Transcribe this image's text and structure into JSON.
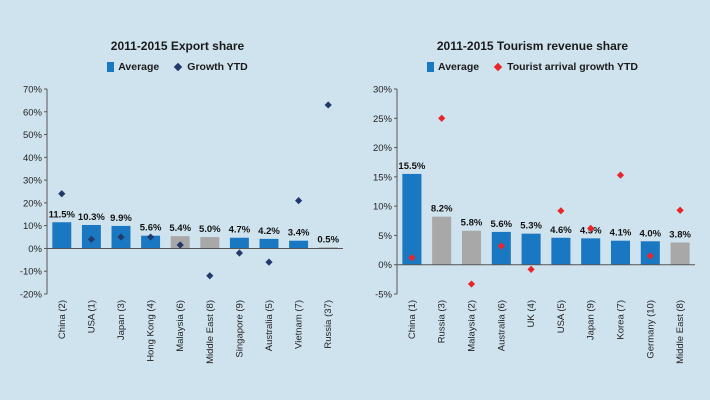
{
  "chart_data": [
    {
      "type": "bar",
      "title": "2011-2015 Export share",
      "legend": {
        "bar_label": "Average",
        "marker_label": "Growth YTD"
      },
      "categories": [
        "China (2)",
        "USA (1)",
        "Japan (3)",
        "Hong Kong (4)",
        "Malaysia (6)",
        "Middle East (8)",
        "Singapore (9)",
        "Australia (5)",
        "Vietnam (7)",
        "Russia (37)"
      ],
      "series": [
        {
          "name": "Average",
          "kind": "bar",
          "values": [
            11.5,
            10.3,
            9.9,
            5.6,
            5.4,
            5.0,
            4.7,
            4.2,
            3.4,
            0.5
          ],
          "labels": [
            "11.5%",
            "10.3%",
            "9.9%",
            "5.6%",
            "5.4%",
            "5.0%",
            "4.7%",
            "4.2%",
            "3.4%",
            "0.5%"
          ],
          "colors": [
            "#1a78c2",
            "#1a78c2",
            "#1a78c2",
            "#1a78c2",
            "#a8a8a8",
            "#a8a8a8",
            "#1a78c2",
            "#1a78c2",
            "#1a78c2",
            "#a8a8a8"
          ]
        },
        {
          "name": "Growth YTD",
          "kind": "marker",
          "marker": "diamond",
          "color": "#23396b",
          "values": [
            24,
            4,
            5,
            5,
            1.5,
            -12,
            -2,
            -6,
            21,
            63
          ]
        }
      ],
      "ylim": [
        -20,
        70
      ],
      "yticks": [
        -20,
        -10,
        0,
        10,
        20,
        30,
        40,
        50,
        60,
        70
      ],
      "ytick_labels": [
        "-20%",
        "-10%",
        "0%",
        "10%",
        "20%",
        "30%",
        "40%",
        "50%",
        "60%",
        "70%"
      ],
      "grid": false
    },
    {
      "type": "bar",
      "title": "2011-2015 Tourism revenue share",
      "legend": {
        "bar_label": "Average",
        "marker_label": "Tourist arrival growth YTD"
      },
      "categories": [
        "China (1)",
        "Russia (3)",
        "Malaysia (2)",
        "Australia (6)",
        "UK (4)",
        "USA (5)",
        "Japan (9)",
        "Korea (7)",
        "Germany (10)",
        "Middle East (8)"
      ],
      "series": [
        {
          "name": "Average",
          "kind": "bar",
          "values": [
            15.5,
            8.2,
            5.8,
            5.6,
            5.3,
            4.6,
            4.5,
            4.1,
            4.0,
            3.8
          ],
          "labels": [
            "15.5%",
            "8.2%",
            "5.8%",
            "5.6%",
            "5.3%",
            "4.6%",
            "4.5%",
            "4.1%",
            "4.0%",
            "3.8%"
          ],
          "colors": [
            "#1a78c2",
            "#a8a8a8",
            "#a8a8a8",
            "#1a78c2",
            "#1a78c2",
            "#1a78c2",
            "#1a78c2",
            "#1a78c2",
            "#1a78c2",
            "#a8a8a8"
          ]
        },
        {
          "name": "Tourist arrival growth YTD",
          "kind": "marker",
          "marker": "diamond",
          "color": "#e8262a",
          "values": [
            1.2,
            25,
            -3.3,
            3.2,
            -0.8,
            9.2,
            6.2,
            15.3,
            1.5,
            9.3
          ]
        }
      ],
      "ylim": [
        -5,
        30
      ],
      "yticks": [
        -5,
        0,
        5,
        10,
        15,
        20,
        25,
        30
      ],
      "ytick_labels": [
        "-5%",
        "0%",
        "5%",
        "10%",
        "15%",
        "20%",
        "25%",
        "30%"
      ],
      "grid": false
    }
  ]
}
